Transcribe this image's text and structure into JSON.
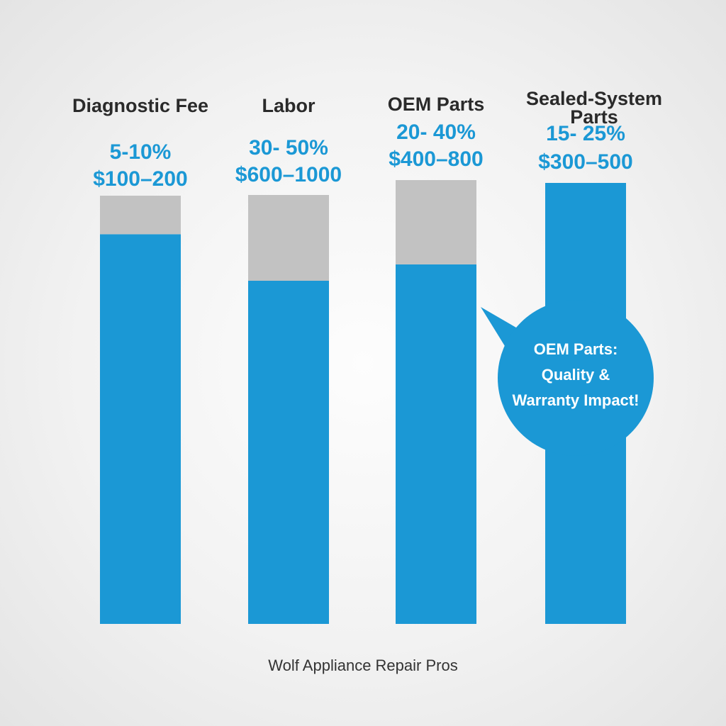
{
  "chart_data": {
    "type": "bar",
    "stacked": true,
    "categories": [
      "Diagnostic Fee",
      "Labor",
      "OEM Parts",
      "Sealed-System Parts"
    ],
    "percent_ranges": [
      "5-10%",
      "30- 50%",
      "20- 40%",
      "15- 25%"
    ],
    "cost_ranges": [
      "$100–200",
      "$600–1000",
      "$400–800",
      "$300–500"
    ],
    "series": [
      {
        "values": [
          0.91,
          0.8,
          0.81,
          1.0
        ],
        "color": "#1b98d5"
      },
      {
        "values": [
          0.09,
          0.2,
          0.19,
          0.0
        ],
        "color": "#c2c2c2"
      }
    ],
    "title": "",
    "xlabel": "",
    "ylabel": "",
    "grid": false,
    "legend": "none",
    "label_color": "#1b98d5",
    "callout": {
      "lines": [
        "OEM Parts:",
        "Quality &",
        "Warranty Impact!"
      ],
      "color": "#1b98d5"
    }
  },
  "footer": "Wolf Appliance Repair Pros"
}
